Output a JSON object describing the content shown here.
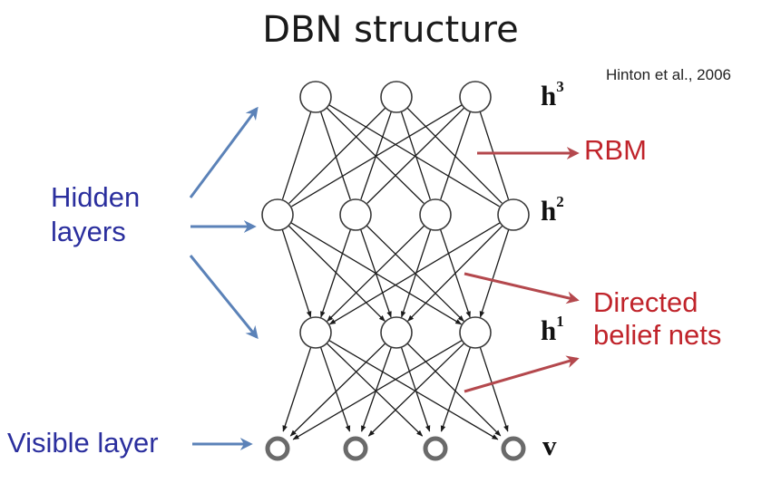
{
  "title": "DBN structure",
  "citation": "Hinton et al., 2006",
  "labels": {
    "hidden_line1": "Hidden",
    "hidden_line2": "layers",
    "visible": "Visible layer",
    "rbm": "RBM",
    "directed_line1": "Directed",
    "directed_line2": "belief nets"
  },
  "layers": [
    {
      "base": "h",
      "sup": "3",
      "nodes": 3,
      "style": "plain"
    },
    {
      "base": "h",
      "sup": "2",
      "nodes": 4,
      "style": "plain"
    },
    {
      "base": "h",
      "sup": "1",
      "nodes": 3,
      "style": "plain"
    },
    {
      "base": "v",
      "sup": "",
      "nodes": 4,
      "style": "double-ring"
    }
  ],
  "connections": [
    {
      "from": "h3",
      "to": "h2",
      "kind": "undirected"
    },
    {
      "from": "h2",
      "to": "h1",
      "kind": "directed-down"
    },
    {
      "from": "h1",
      "to": "v",
      "kind": "directed-down"
    }
  ],
  "colors": {
    "blue_text": "#2b2f9e",
    "blue_arrow": "#5b82b8",
    "red": "#c0242b",
    "red_arrow": "#b4484d",
    "edge": "#1a1a1a",
    "node_stroke": "#3a3a3a",
    "visible_node_stroke": "#6a6a6a"
  }
}
